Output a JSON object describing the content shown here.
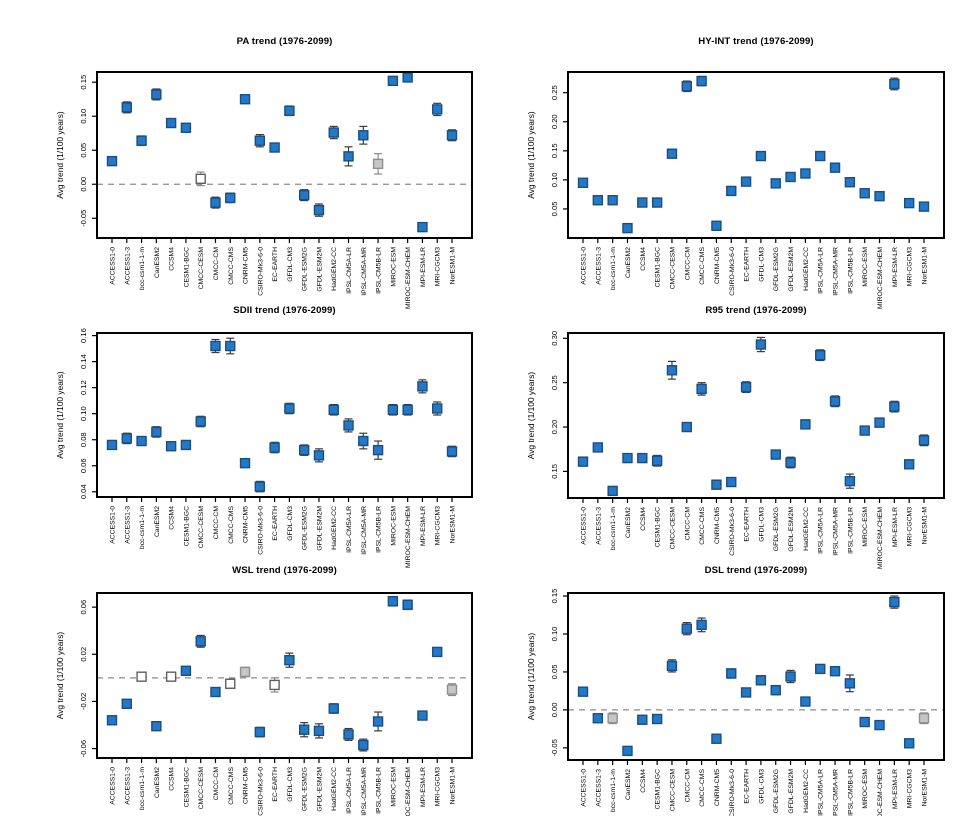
{
  "figure": {
    "background": "#ffffff",
    "ylabel_shared": "Avg trend (1/100 years)"
  },
  "styles": {
    "marker_fill_blue": "#2478c8",
    "marker_stroke_blue": "#1b4e7f",
    "marker_fill_white": "#ffffff",
    "marker_stroke_white": "#5f5f5f",
    "marker_fill_gray": "#c6c6c6",
    "marker_stroke_gray": "#8f8f8f",
    "errorbar_color": "#3a3a3a",
    "errorbar_color_muted": "#8a8a8a",
    "zero_line_color": "#8c8c8c",
    "frame_color": "#000000"
  },
  "chart_data": [
    {
      "type": "scatter",
      "title": "PA trend (1976-2099)",
      "xlabel": "",
      "ylabel": "Avg trend (1/100 years)",
      "ylim": [
        -0.079,
        0.165
      ],
      "yticks": [
        -0.05,
        0.0,
        0.05,
        0.1,
        0.15
      ],
      "zero_line": true,
      "grid": false,
      "categories": [
        "ACCESS1-0",
        "ACCESS1-3",
        "bcc-csm1-1-m",
        "CanESM2",
        "CCSM4",
        "CESM1-BGC",
        "CMCC-CESM",
        "CMCC-CM",
        "CMCC-CMS",
        "CNRM-CM5",
        "CSIRO-Mk3-6-0",
        "EC-EARTH",
        "GFDL-CM3",
        "GFDL-ESM2G",
        "GFDL-ESM2M",
        "HadGEM2-CC",
        "IPSL-CM5A-LR",
        "IPSL-CM5A-MR",
        "IPSL-CM5B-LR",
        "MIROC-ESM",
        "MIROC-ESM-CHEM",
        "MPI-ESM-LR",
        "MRI-CGCM3",
        "NorESM1-M"
      ],
      "values": [
        0.034,
        0.113,
        0.064,
        0.132,
        0.09,
        0.083,
        0.008,
        -0.027,
        -0.02,
        0.125,
        0.064,
        0.054,
        0.108,
        -0.016,
        -0.038,
        0.076,
        0.041,
        0.072,
        0.03,
        0.152,
        0.157,
        -0.063,
        0.11,
        0.072
      ],
      "errors": [
        0.005,
        0.008,
        0.007,
        0.008,
        0.004,
        0.004,
        0.01,
        0.008,
        0.007,
        0.004,
        0.009,
        0.006,
        0.007,
        0.008,
        0.009,
        0.009,
        0.014,
        0.013,
        0.015,
        0.006,
        0.006,
        0.006,
        0.009,
        0.008
      ],
      "marker_colors": [
        "blue",
        "blue",
        "blue",
        "blue",
        "blue",
        "blue",
        "white",
        "blue",
        "blue",
        "blue",
        "blue",
        "blue",
        "blue",
        "blue",
        "blue",
        "blue",
        "blue",
        "blue",
        "gray",
        "blue",
        "blue",
        "blue",
        "blue",
        "blue"
      ]
    },
    {
      "type": "scatter",
      "title": "HY-INT trend (1976-2099)",
      "xlabel": "",
      "ylabel": "Avg trend (1/100 years)",
      "ylim": [
        0.0,
        0.2856
      ],
      "yticks": [
        0.05,
        0.1,
        0.15,
        0.2,
        0.25
      ],
      "zero_line": true,
      "grid": false,
      "categories": [
        "ACCESS1-0",
        "ACCESS1-3",
        "bcc-csm1-1-m",
        "CanESM2",
        "CCSM4",
        "CESM1-BGC",
        "CMCC-CESM",
        "CMCC-CM",
        "CMCC-CMS",
        "CNRM-CM5",
        "CSIRO-Mk3-6-0",
        "EC-EARTH",
        "GFDL-CM3",
        "GFDL-ESM2G",
        "GFDL-ESM2M",
        "HadGEM2-CC",
        "IPSL-CM5A-LR",
        "IPSL-CM5A-MR",
        "IPSL-CM5B-LR",
        "MIROC-ESM",
        "MIROC-ESM-CHEM",
        "MPI-ESM-LR",
        "MRI-CGCM3",
        "NorESM1-M"
      ],
      "values": [
        0.095,
        0.065,
        0.065,
        0.017,
        0.061,
        0.061,
        0.145,
        0.261,
        0.27,
        0.021,
        0.081,
        0.097,
        0.141,
        0.094,
        0.105,
        0.111,
        0.141,
        0.121,
        0.096,
        0.077,
        0.072,
        0.265,
        0.06,
        0.054
      ],
      "errors": [
        0.004,
        0.003,
        0.003,
        0.003,
        0.003,
        0.003,
        0.006,
        0.009,
        0.008,
        0.003,
        0.004,
        0.004,
        0.004,
        0.003,
        0.004,
        0.004,
        0.004,
        0.004,
        0.006,
        0.003,
        0.003,
        0.01,
        0.003,
        0.003
      ],
      "marker_colors": [
        "blue",
        "blue",
        "blue",
        "blue",
        "blue",
        "blue",
        "blue",
        "blue",
        "blue",
        "blue",
        "blue",
        "blue",
        "blue",
        "blue",
        "blue",
        "blue",
        "blue",
        "blue",
        "blue",
        "blue",
        "blue",
        "blue",
        "blue",
        "blue"
      ]
    },
    {
      "type": "scatter",
      "title": "SDII trend (1976-2099)",
      "xlabel": "",
      "ylabel": "Avg trend (1/100 years)",
      "ylim": [
        0.036,
        0.162
      ],
      "yticks": [
        0.04,
        0.06,
        0.08,
        0.1,
        0.12,
        0.14,
        0.16
      ],
      "zero_line": false,
      "grid": false,
      "categories": [
        "ACCESS1-0",
        "ACCESS1-3",
        "bcc-csm1-1-m",
        "CanESM2",
        "CCSM4",
        "CESM1-BGC",
        "CMCC-CESM",
        "CMCC-CM",
        "CMCC-CMS",
        "CNRM-CM5",
        "CSIRO-Mk3-6-0",
        "EC-EARTH",
        "GFDL-CM3",
        "GFDL-ESM2G",
        "GFDL-ESM2M",
        "HadGEM2-CC",
        "IPSL-CM5A-LR",
        "IPSL-CM5A-MR",
        "IPSL-CM5B-LR",
        "MIROC-ESM",
        "MIROC-ESM-CHEM",
        "MPI-ESM-LR",
        "MRI-CGCM3",
        "NorESM1-M"
      ],
      "values": [
        0.076,
        0.081,
        0.079,
        0.086,
        0.075,
        0.076,
        0.094,
        0.152,
        0.152,
        0.062,
        0.044,
        0.074,
        0.104,
        0.072,
        0.068,
        0.103,
        0.091,
        0.079,
        0.072,
        0.103,
        0.103,
        0.121,
        0.104,
        0.071
      ],
      "errors": [
        0.003,
        0.004,
        0.003,
        0.004,
        0.003,
        0.003,
        0.004,
        0.005,
        0.006,
        0.003,
        0.004,
        0.004,
        0.004,
        0.004,
        0.005,
        0.004,
        0.005,
        0.006,
        0.007,
        0.004,
        0.004,
        0.005,
        0.005,
        0.004
      ],
      "marker_colors": [
        "blue",
        "blue",
        "blue",
        "blue",
        "blue",
        "blue",
        "blue",
        "blue",
        "blue",
        "blue",
        "blue",
        "blue",
        "blue",
        "blue",
        "blue",
        "blue",
        "blue",
        "blue",
        "blue",
        "blue",
        "blue",
        "blue",
        "blue",
        "blue"
      ]
    },
    {
      "type": "scatter",
      "title": "R95 trend (1976-2099)",
      "xlabel": "",
      "ylabel": "Avg trend (1/100 years)",
      "ylim": [
        0.12,
        0.306
      ],
      "yticks": [
        0.15,
        0.2,
        0.25,
        0.3
      ],
      "zero_line": false,
      "grid": false,
      "categories": [
        "ACCESS1-0",
        "ACCESS1-3",
        "bcc-csm1-1-m",
        "CanESM2",
        "CCSM4",
        "CESM1-BGC",
        "CMCC-CESM",
        "CMCC-CM",
        "CMCC-CMS",
        "CNRM-CM5",
        "CSIRO-Mk3-6-0",
        "EC-EARTH",
        "GFDL-CM3",
        "GFDL-ESM2G",
        "GFDL-ESM2M",
        "HadGEM2-CC",
        "IPSL-CM5A-LR",
        "IPSL-CM5A-MR",
        "IPSL-CM5B-LR",
        "MIROC-ESM",
        "MIROC-ESM-CHEM",
        "MPI-ESM-LR",
        "MRI-CGCM3",
        "NorESM1-M"
      ],
      "values": [
        0.161,
        0.177,
        0.128,
        0.165,
        0.165,
        0.162,
        0.264,
        0.2,
        0.243,
        0.135,
        0.138,
        0.245,
        0.293,
        0.169,
        0.16,
        0.203,
        0.281,
        0.229,
        0.139,
        0.196,
        0.205,
        0.223,
        0.158,
        0.185
      ],
      "errors": [
        0.004,
        0.004,
        0.004,
        0.004,
        0.004,
        0.006,
        0.01,
        0.005,
        0.007,
        0.004,
        0.004,
        0.006,
        0.008,
        0.005,
        0.006,
        0.005,
        0.006,
        0.006,
        0.008,
        0.004,
        0.005,
        0.006,
        0.004,
        0.006
      ],
      "marker_colors": [
        "blue",
        "blue",
        "blue",
        "blue",
        "blue",
        "blue",
        "blue",
        "blue",
        "blue",
        "blue",
        "blue",
        "blue",
        "blue",
        "blue",
        "blue",
        "blue",
        "blue",
        "blue",
        "blue",
        "blue",
        "blue",
        "blue",
        "blue",
        "blue"
      ]
    },
    {
      "type": "scatter",
      "title": "WSL trend (1976-2099)",
      "xlabel": "",
      "ylabel": "Avg trend (1/100 years)",
      "ylim": [
        -0.068,
        0.072
      ],
      "yticks": [
        -0.06,
        -0.02,
        0.02,
        0.06
      ],
      "zero_line": true,
      "grid": false,
      "categories": [
        "ACCESS1-0",
        "ACCESS1-3",
        "bcc-csm1-1-m",
        "CanESM2",
        "CCSM4",
        "CESM1-BGC",
        "CMCC-CESM",
        "CMCC-CM",
        "CMCC-CMS",
        "CNRM-CM5",
        "CSIRO-Mk3-6-0",
        "EC-EARTH",
        "GFDL-CM3",
        "GFDL-ESM2G",
        "GFDL-ESM2M",
        "HadGEM2-CC",
        "IPSL-CM5A-LR",
        "IPSL-CM5A-MR",
        "IPSL-CM5B-LR",
        "MIROC-ESM",
        "MIROC-ESM-CHEM",
        "MPI-ESM-LR",
        "MRI-CGCM3",
        "NorESM1-M"
      ],
      "values": [
        -0.036,
        -0.022,
        0.001,
        -0.041,
        0.001,
        0.006,
        0.031,
        -0.012,
        -0.005,
        0.005,
        -0.046,
        -0.006,
        0.015,
        -0.044,
        -0.045,
        -0.026,
        -0.048,
        -0.057,
        -0.037,
        0.065,
        0.062,
        -0.032,
        0.022,
        -0.01
      ],
      "errors": [
        0.003,
        0.003,
        0.003,
        0.003,
        0.003,
        0.003,
        0.005,
        0.003,
        0.004,
        0.004,
        0.004,
        0.006,
        0.006,
        0.006,
        0.006,
        0.004,
        0.005,
        0.005,
        0.008,
        0.004,
        0.004,
        0.003,
        0.003,
        0.005
      ],
      "marker_colors": [
        "blue",
        "blue",
        "white",
        "blue",
        "white",
        "blue",
        "blue",
        "blue",
        "white",
        "gray",
        "blue",
        "white",
        "blue",
        "blue",
        "blue",
        "blue",
        "blue",
        "blue",
        "blue",
        "blue",
        "blue",
        "blue",
        "blue",
        "gray"
      ]
    },
    {
      "type": "scatter",
      "title": "DSL trend (1976-2099)",
      "xlabel": "",
      "ylabel": "Avg trend (1/100 years)",
      "ylim": [
        -0.066,
        0.154
      ],
      "yticks": [
        -0.05,
        0.0,
        0.05,
        0.1,
        0.15
      ],
      "zero_line": true,
      "grid": false,
      "categories": [
        "ACCESS1-0",
        "ACCESS1-3",
        "bcc-csm1-1-m",
        "CanESM2",
        "CCSM4",
        "CESM1-BGC",
        "CMCC-CESM",
        "CMCC-CM",
        "CMCC-CMS",
        "CNRM-CM5",
        "CSIRO-Mk3-6-0",
        "EC-EARTH",
        "GFDL-CM3",
        "GFDL-ESM2G",
        "GFDL-ESM2M",
        "HadGEM2-CC",
        "IPSL-CM5A-LR",
        "IPSL-CM5A-MR",
        "IPSL-CM5B-LR",
        "MIROC-ESM",
        "MIROC-ESM-CHEM",
        "MPI-ESM-LR",
        "MRI-CGCM3",
        "NorESM1-M"
      ],
      "values": [
        0.024,
        -0.011,
        -0.011,
        -0.054,
        -0.013,
        -0.012,
        0.058,
        0.107,
        0.112,
        -0.038,
        0.048,
        0.023,
        0.039,
        0.026,
        0.044,
        0.011,
        0.054,
        0.051,
        0.035,
        -0.016,
        -0.02,
        0.142,
        -0.044,
        -0.011
      ],
      "errors": [
        0.005,
        0.003,
        0.007,
        0.004,
        0.003,
        0.003,
        0.008,
        0.008,
        0.009,
        0.004,
        0.006,
        0.004,
        0.006,
        0.006,
        0.008,
        0.005,
        0.005,
        0.005,
        0.011,
        0.004,
        0.004,
        0.008,
        0.005,
        0.007
      ],
      "marker_colors": [
        "blue",
        "blue",
        "gray",
        "blue",
        "blue",
        "blue",
        "blue",
        "blue",
        "blue",
        "blue",
        "blue",
        "blue",
        "blue",
        "blue",
        "blue",
        "blue",
        "blue",
        "blue",
        "blue",
        "blue",
        "blue",
        "blue",
        "blue",
        "gray"
      ]
    }
  ]
}
